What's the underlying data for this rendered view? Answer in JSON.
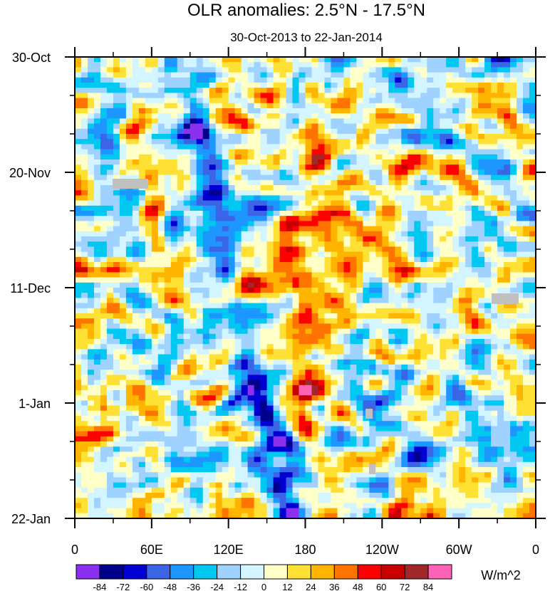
{
  "chart_data": {
    "type": "heatmap",
    "title": "OLR anomalies: 2.5°N - 17.5°N",
    "subtitle": "30-Oct-2013 to 22-Jan-2014",
    "xlabel": "",
    "ylabel": "",
    "x_ticks": [
      "0",
      "60E",
      "120E",
      "180",
      "120W",
      "60W",
      "0"
    ],
    "x_range_deg_east": [
      0,
      360
    ],
    "y_ticks": [
      "30-Oct",
      "20-Nov",
      "11-Dec",
      "1-Jan",
      "22-Jan"
    ],
    "y_range": [
      "30-Oct-2013",
      "22-Jan-2014"
    ],
    "colorbar": {
      "units": "W/m^2",
      "levels": [
        "-84",
        "-72",
        "-60",
        "-48",
        "-36",
        "-24",
        "-12",
        "0",
        "12",
        "24",
        "36",
        "48",
        "60",
        "72",
        "84"
      ],
      "colors": [
        "#8c30f0",
        "#00008c",
        "#0000d2",
        "#3c64e6",
        "#1e96ff",
        "#00c8f0",
        "#9fd2ff",
        "#d2f5ff",
        "#ffffc8",
        "#ffe135",
        "#ffb400",
        "#ff7300",
        "#ff0000",
        "#c80000",
        "#a02828",
        "#ff64b4"
      ]
    },
    "missing_color": "#c0c0c0"
  }
}
